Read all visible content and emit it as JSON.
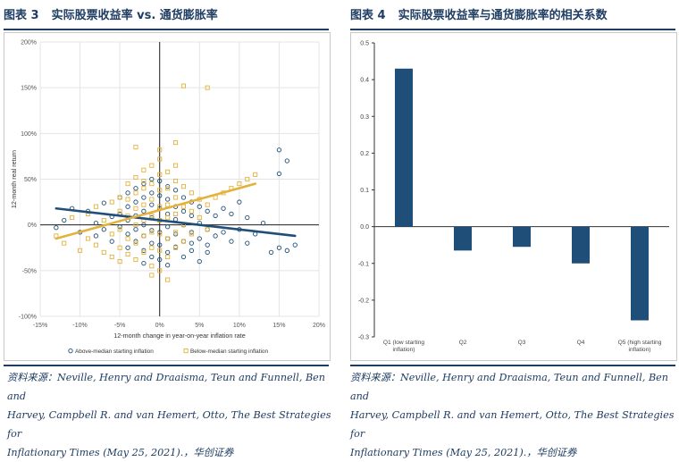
{
  "left": {
    "title_prefix": "图表 3",
    "title_text": "实际股票收益率 vs. 通货膨胀率",
    "source_lines": [
      "资料来源：Neville, Henry and Draaisma, Teun and Funnell, Ben and",
      "Harvey, Campbell R. and van Hemert, Otto, The Best Strategies for",
      "Inflationary Times (May 25, 2021).，华创证券"
    ]
  },
  "right": {
    "title_prefix": "图表 4",
    "title_text": "实际股票收益率与通货膨胀率的相关系数",
    "source_lines": [
      "资料来源：Neville, Henry and Draaisma, Teun and Funnell, Ben and",
      "Harvey, Campbell R. and van Hemert, Otto, The Best Strategies for",
      "Inflationary Times (May 25, 2021).，华创证券"
    ]
  },
  "colors": {
    "navy": "#1f4e79",
    "gold": "#e3b23c",
    "title": "#1f3d63"
  },
  "chart_data": [
    {
      "type": "scatter",
      "xlabel": "12-month change in year-on-year inflation rate",
      "ylabel": "12-month real return",
      "xlim": [
        -15,
        20
      ],
      "ylim": [
        -100,
        200
      ],
      "x_ticks": [
        -15,
        -10,
        -5,
        0,
        5,
        10,
        15,
        20
      ],
      "x_tick_labels": [
        "-15%",
        "-10%",
        "-5%",
        "0%",
        "5%",
        "10%",
        "15%",
        "20%"
      ],
      "y_ticks": [
        -100,
        -50,
        0,
        50,
        100,
        150,
        200
      ],
      "y_tick_labels": [
        "-100%",
        "-50%",
        "0%",
        "50%",
        "100%",
        "150%",
        "200%"
      ],
      "grid": true,
      "legend_position": "bottom",
      "series": [
        {
          "name": "Above-median starting inflation",
          "marker": "circle",
          "color": "#1f4e79",
          "trendline": [
            [
              -13,
              18
            ],
            [
              17,
              -12
            ]
          ],
          "points": [
            [
              -13,
              -3
            ],
            [
              -12,
              5
            ],
            [
              -11,
              18
            ],
            [
              -10,
              -8
            ],
            [
              -9,
              15
            ],
            [
              -8,
              2
            ],
            [
              -8,
              -12
            ],
            [
              -7,
              24
            ],
            [
              -7,
              -5
            ],
            [
              -6,
              9
            ],
            [
              -6,
              -18
            ],
            [
              -5,
              30
            ],
            [
              -5,
              12
            ],
            [
              -5,
              -2
            ],
            [
              -4,
              35
            ],
            [
              -4,
              20
            ],
            [
              -4,
              5
            ],
            [
              -4,
              -10
            ],
            [
              -4,
              -25
            ],
            [
              -3,
              40
            ],
            [
              -3,
              25
            ],
            [
              -3,
              10
            ],
            [
              -3,
              -5
            ],
            [
              -3,
              -18
            ],
            [
              -2,
              45
            ],
            [
              -2,
              30
            ],
            [
              -2,
              15
            ],
            [
              -2,
              0
            ],
            [
              -2,
              -12
            ],
            [
              -2,
              -28
            ],
            [
              -1,
              50
            ],
            [
              -1,
              35
            ],
            [
              -1,
              22
            ],
            [
              -1,
              8
            ],
            [
              -1,
              -6
            ],
            [
              -1,
              -20
            ],
            [
              -1,
              -35
            ],
            [
              0,
              48
            ],
            [
              0,
              32
            ],
            [
              0,
              18
            ],
            [
              0,
              5
            ],
            [
              0,
              -8
            ],
            [
              0,
              -22
            ],
            [
              0,
              -38
            ],
            [
              1,
              42
            ],
            [
              1,
              28
            ],
            [
              1,
              12
            ],
            [
              1,
              -2
            ],
            [
              1,
              -15
            ],
            [
              1,
              -30
            ],
            [
              2,
              38
            ],
            [
              2,
              20
            ],
            [
              2,
              6
            ],
            [
              2,
              -10
            ],
            [
              2,
              -24
            ],
            [
              3,
              30
            ],
            [
              3,
              15
            ],
            [
              3,
              0
            ],
            [
              3,
              -18
            ],
            [
              3,
              -35
            ],
            [
              4,
              25
            ],
            [
              4,
              10
            ],
            [
              4,
              -8
            ],
            [
              4,
              -28
            ],
            [
              5,
              20
            ],
            [
              5,
              2
            ],
            [
              5,
              -15
            ],
            [
              5,
              -40
            ],
            [
              6,
              15
            ],
            [
              6,
              -5
            ],
            [
              6,
              -22
            ],
            [
              7,
              10
            ],
            [
              7,
              -12
            ],
            [
              8,
              18
            ],
            [
              8,
              -8
            ],
            [
              9,
              12
            ],
            [
              9,
              -18
            ],
            [
              10,
              25
            ],
            [
              10,
              -5
            ],
            [
              11,
              8
            ],
            [
              11,
              -20
            ],
            [
              12,
              -10
            ],
            [
              13,
              2
            ],
            [
              14,
              -30
            ],
            [
              15,
              82
            ],
            [
              15,
              56
            ],
            [
              15,
              -25
            ],
            [
              16,
              70
            ],
            [
              16,
              -28
            ],
            [
              17,
              -22
            ],
            [
              -2,
              -42
            ],
            [
              1,
              -44
            ],
            [
              4,
              -20
            ],
            [
              6,
              -30
            ]
          ]
        },
        {
          "name": "Below-median starting inflation",
          "marker": "square",
          "color": "#e3b23c",
          "trendline": [
            [
              -13,
              -15
            ],
            [
              12,
              45
            ]
          ],
          "points": [
            [
              -13,
              -12
            ],
            [
              -12,
              -20
            ],
            [
              -11,
              8
            ],
            [
              -10,
              -28
            ],
            [
              -9,
              12
            ],
            [
              -9,
              -15
            ],
            [
              -8,
              20
            ],
            [
              -8,
              -22
            ],
            [
              -7,
              5
            ],
            [
              -7,
              -30
            ],
            [
              -6,
              25
            ],
            [
              -6,
              -10
            ],
            [
              -6,
              -35
            ],
            [
              -5,
              30
            ],
            [
              -5,
              15
            ],
            [
              -5,
              -5
            ],
            [
              -5,
              -25
            ],
            [
              -5,
              -40
            ],
            [
              -4,
              45
            ],
            [
              -4,
              28
            ],
            [
              -4,
              10
            ],
            [
              -4,
              -15
            ],
            [
              -4,
              -32
            ],
            [
              -3,
              52
            ],
            [
              -3,
              35
            ],
            [
              -3,
              18
            ],
            [
              -3,
              0
            ],
            [
              -3,
              -20
            ],
            [
              -3,
              -38
            ],
            [
              -2,
              60
            ],
            [
              -2,
              40
            ],
            [
              -2,
              22
            ],
            [
              -2,
              5
            ],
            [
              -2,
              -12
            ],
            [
              -2,
              -30
            ],
            [
              -1,
              65
            ],
            [
              -1,
              45
            ],
            [
              -1,
              28
            ],
            [
              -1,
              10
            ],
            [
              -1,
              -8
            ],
            [
              -1,
              -25
            ],
            [
              -1,
              -45
            ],
            [
              0,
              72
            ],
            [
              0,
              55
            ],
            [
              0,
              38
            ],
            [
              0,
              20
            ],
            [
              0,
              5
            ],
            [
              0,
              -10
            ],
            [
              0,
              -28
            ],
            [
              0,
              -50
            ],
            [
              1,
              58
            ],
            [
              1,
              40
            ],
            [
              1,
              22
            ],
            [
              1,
              8
            ],
            [
              1,
              -15
            ],
            [
              1,
              -35
            ],
            [
              2,
              90
            ],
            [
              2,
              48
            ],
            [
              2,
              30
            ],
            [
              2,
              12
            ],
            [
              2,
              -8
            ],
            [
              2,
              -25
            ],
            [
              3,
              152
            ],
            [
              3,
              42
            ],
            [
              3,
              20
            ],
            [
              3,
              0
            ],
            [
              3,
              -18
            ],
            [
              4,
              35
            ],
            [
              4,
              15
            ],
            [
              4,
              -10
            ],
            [
              5,
              28
            ],
            [
              5,
              8
            ],
            [
              6,
              150
            ],
            [
              6,
              22
            ],
            [
              6,
              -5
            ],
            [
              7,
              30
            ],
            [
              8,
              35
            ],
            [
              9,
              40
            ],
            [
              10,
              45
            ],
            [
              11,
              50
            ],
            [
              12,
              55
            ],
            [
              -3,
              85
            ],
            [
              -1,
              -55
            ],
            [
              1,
              -60
            ],
            [
              0,
              82
            ],
            [
              -2,
              48
            ],
            [
              2,
              65
            ]
          ]
        }
      ]
    },
    {
      "type": "bar",
      "categories": [
        "Q1 (low starting inflation)",
        "Q2",
        "Q3",
        "Q4",
        "Q5 (high starting inflation)"
      ],
      "values": [
        0.43,
        -0.065,
        -0.055,
        -0.1,
        -0.255
      ],
      "ylim": [
        -0.3,
        0.5
      ],
      "y_ticks": [
        -0.3,
        -0.2,
        -0.1,
        0,
        0.1,
        0.2,
        0.3,
        0.4,
        0.5
      ],
      "y_tick_labels": [
        "-0.3",
        "-0.2",
        "-0.1",
        "0.0",
        "0.1",
        "0.2",
        "0.3",
        "0.4",
        "0.5"
      ],
      "grid": false,
      "color": "#1f4e79"
    }
  ]
}
